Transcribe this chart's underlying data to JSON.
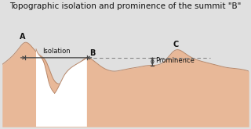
{
  "title": "Topographic isolation and prominence of the summit \"B\"",
  "title_fontsize": 7.5,
  "bg_color": "#e0e0e0",
  "fill_color": "#e8b898",
  "fill_edge_color": "#b8886a",
  "label_A": "A",
  "label_B": "B",
  "label_C": "C",
  "label_isolation": "Isolation",
  "label_prominence": "Prominence",
  "arrow_color": "#444444",
  "dashed_color": "#888888",
  "text_color": "#111111",
  "xmax": 320,
  "ymax": 110,
  "ymin": -10
}
